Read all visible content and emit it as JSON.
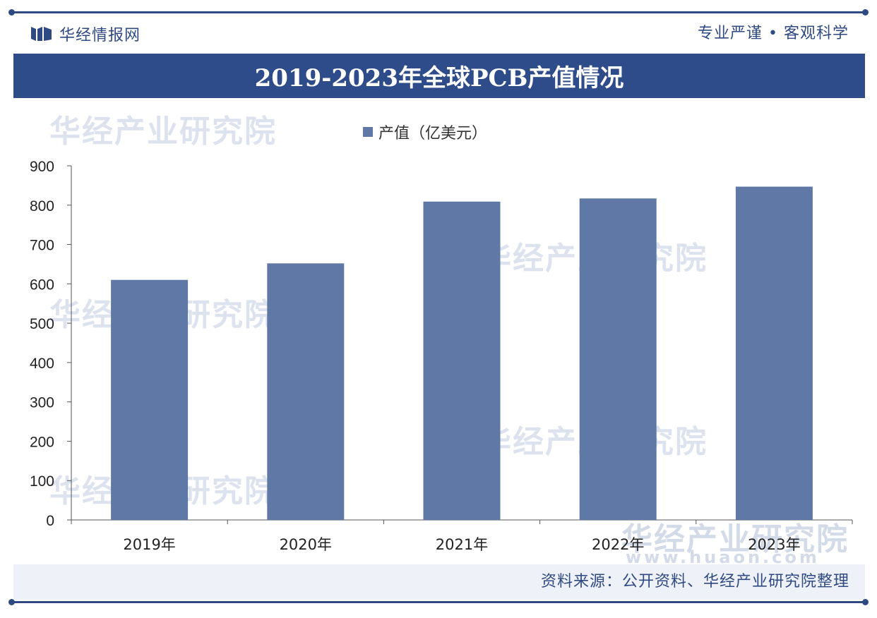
{
  "header": {
    "brand_name": "华经情报网",
    "slogan": "专业严谨 • 客观科学",
    "title": "2019-2023年全球PCB产值情况"
  },
  "watermarks": {
    "institute": "华经产业研究院",
    "url": "www.huaon.com"
  },
  "footer": {
    "source": "资料来源：公开资料、华经产业研究院整理"
  },
  "colors": {
    "brand": "#2f4a82",
    "bar": "#5f78a5",
    "axis": "#555555"
  },
  "chart_data": {
    "type": "bar",
    "categories": [
      "2019年",
      "2020年",
      "2021年",
      "2022年",
      "2023年"
    ],
    "series": [
      {
        "name": "产值（亿美元）",
        "values": [
          610,
          652,
          809,
          817,
          847
        ]
      }
    ],
    "ylim": [
      0,
      900
    ],
    "yticks": [
      0,
      100,
      200,
      300,
      400,
      500,
      600,
      700,
      800,
      900
    ],
    "grid": false,
    "legend": "top-center"
  }
}
